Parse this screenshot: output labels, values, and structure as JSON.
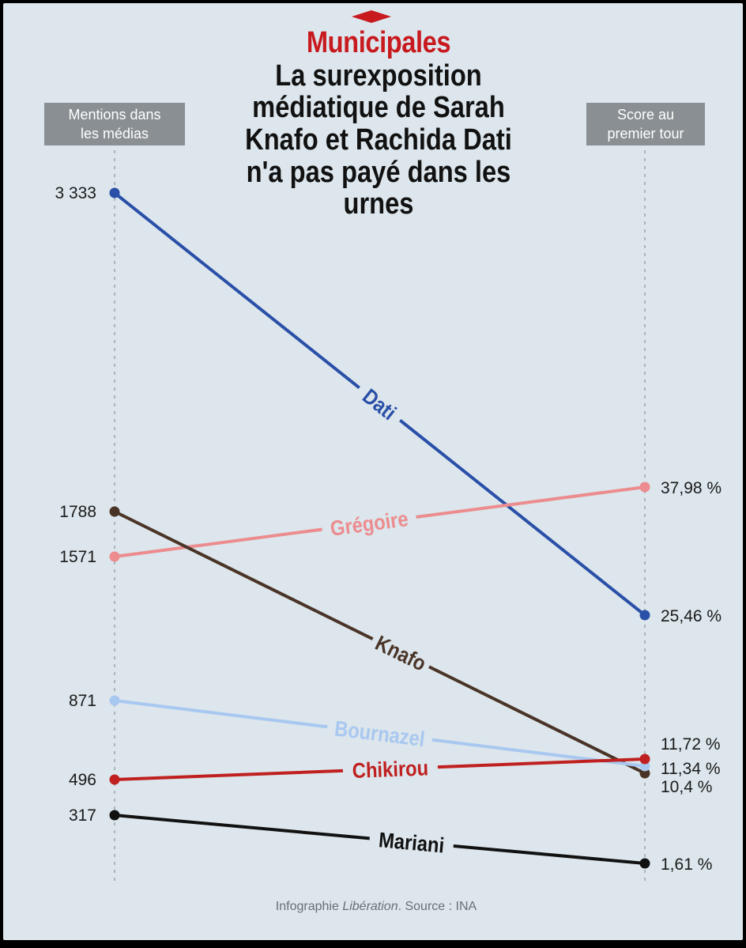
{
  "header": {
    "kicker": "Municipales",
    "title_lines": [
      "La surexposition",
      "médiatique de Sarah",
      "Knafo et Rachida Dati",
      "n'a pas payé dans les",
      "urnes"
    ]
  },
  "axes": {
    "left_label_lines": [
      "Mentions dans",
      "les médias"
    ],
    "right_label_lines": [
      "Score au",
      "premier tour"
    ]
  },
  "source": {
    "prefix": "Infographie ",
    "brand": "Libération",
    "suffix": ". Source : INA"
  },
  "colors": {
    "background": "#dce6ec",
    "kicker": "#c8191e",
    "axis_label_bg": "#8a8f93"
  },
  "chart_data": {
    "type": "line",
    "subtype": "slope",
    "x": [
      "Mentions dans les médias",
      "Score au premier tour"
    ],
    "series": [
      {
        "name": "Dati",
        "mentions": 3333,
        "mentions_label": "3 333",
        "score": 25.46,
        "score_label": "25,46 %",
        "color": "#2a4fa8"
      },
      {
        "name": "Grégoire",
        "mentions": 1571,
        "mentions_label": "1571",
        "score": 37.98,
        "score_label": "37,98 %",
        "color": "#ec8c8f"
      },
      {
        "name": "Knafo",
        "mentions": 1788,
        "mentions_label": "1788",
        "score": 10.4,
        "score_label": "10,4 %",
        "color": "#4a3427"
      },
      {
        "name": "Bournazel",
        "mentions": 871,
        "mentions_label": "871",
        "score": 11.34,
        "score_label": "11,34 %",
        "color": "#a9c8f0"
      },
      {
        "name": "Chikirou",
        "mentions": 496,
        "mentions_label": "496",
        "score": 11.72,
        "score_label": "11,72 %",
        "color": "#c0201f"
      },
      {
        "name": "Mariani",
        "mentions": 317,
        "mentions_label": "317",
        "score": 1.61,
        "score_label": "1,61 %",
        "color": "#111111"
      }
    ],
    "left_axis_range": [
      0,
      3333
    ],
    "right_axis_range": [
      0,
      37.98
    ],
    "grid": false
  }
}
